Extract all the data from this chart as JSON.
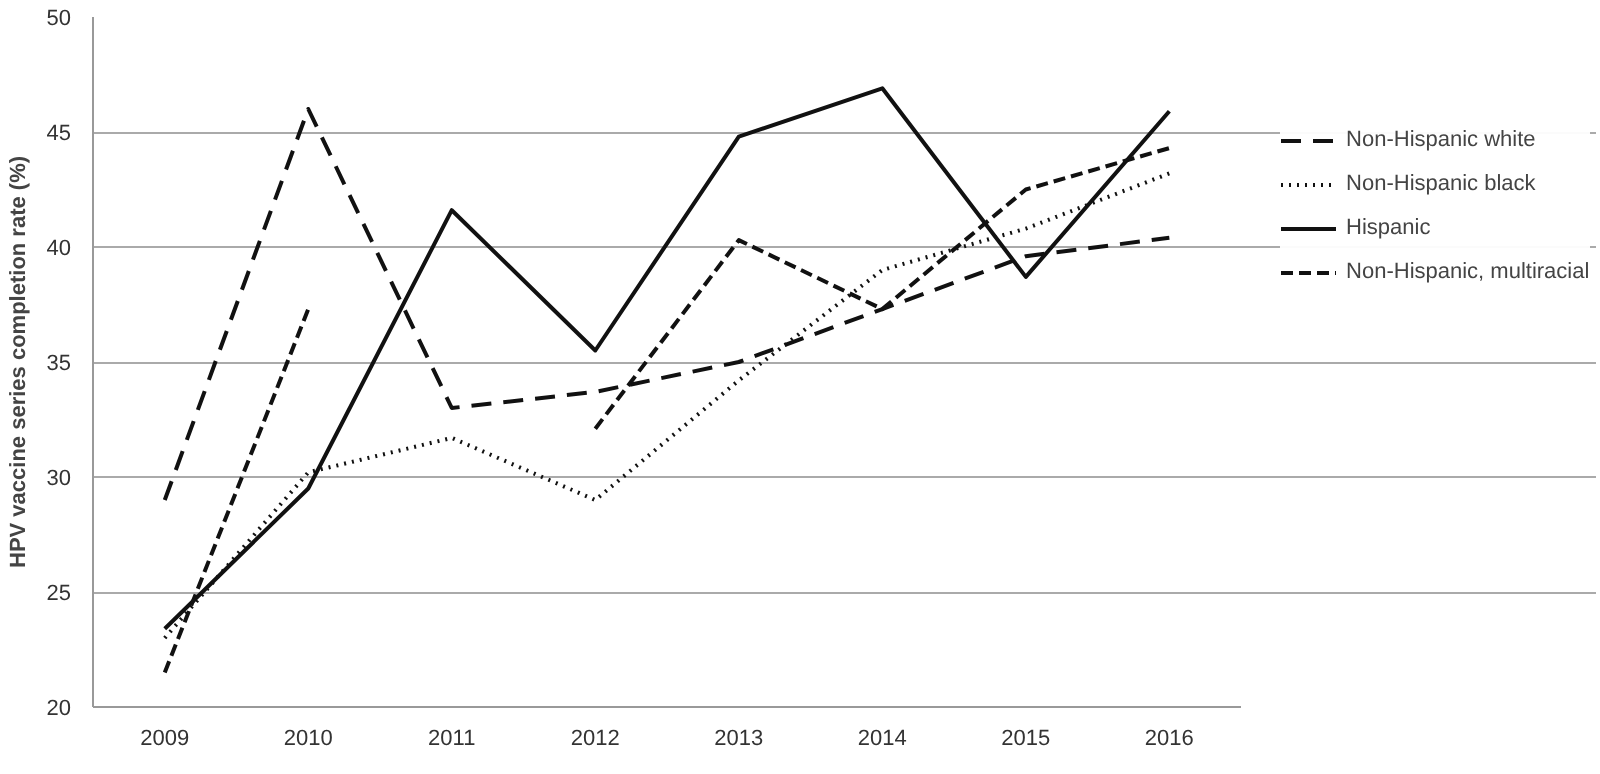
{
  "chart_data": {
    "type": "line",
    "ylabel": "HPV vaccine series completion rate (%)",
    "categories": [
      "2009",
      "2010",
      "2011",
      "2012",
      "2013",
      "2014",
      "2015",
      "2016"
    ],
    "ylim": [
      20,
      50
    ],
    "yticks": [
      20,
      25,
      30,
      35,
      40,
      45,
      50
    ],
    "grid": "y",
    "legend": "right",
    "series": [
      {
        "name": "Non-Hispanic white",
        "color": "#111111",
        "line_style": "dashed",
        "values": [
          29,
          46,
          33,
          33.7,
          35,
          37.3,
          39.6,
          40.4
        ]
      },
      {
        "name": "Non-Hispanic black",
        "color": "#111111",
        "line_style": "dotted",
        "values": [
          23,
          30.2,
          31.7,
          29,
          34.2,
          39,
          40.8,
          43.2
        ]
      },
      {
        "name": "Hispanic",
        "color": "#111111",
        "line_style": "solid",
        "values": [
          23.4,
          29.5,
          41.6,
          35.5,
          44.8,
          46.9,
          38.7,
          45.9
        ]
      },
      {
        "name": "Non-Hispanic, multiracial",
        "color": "#111111",
        "line_style": "dashed",
        "values": [
          21.5,
          37.3,
          null,
          32.1,
          40.3,
          37.3,
          42.5,
          44.3
        ]
      }
    ]
  }
}
